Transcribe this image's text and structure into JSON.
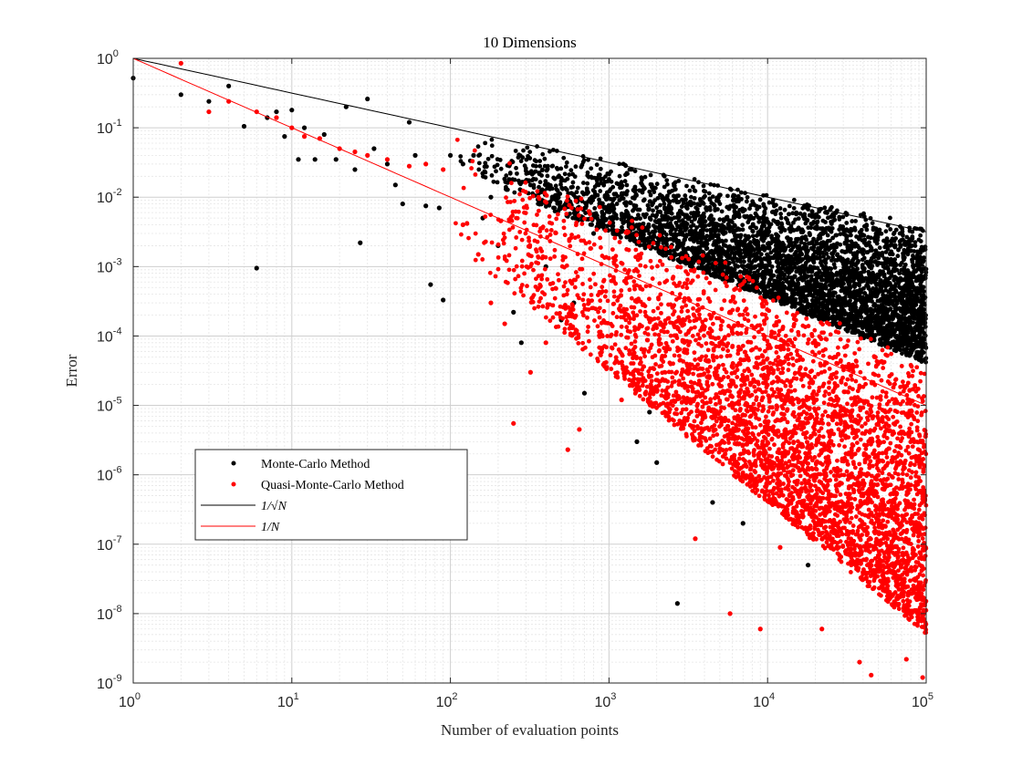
{
  "chart_data": {
    "type": "scatter",
    "title": "10 Dimensions",
    "xlabel": "Number of evaluation points",
    "ylabel": "Error",
    "xscale": "log",
    "yscale": "log",
    "xlim": [
      1,
      100000
    ],
    "ylim": [
      1e-09,
      1
    ],
    "grid": true,
    "minor_grid": true,
    "legend_position": "lower-left",
    "x_ticks": [
      {
        "base": "10",
        "exp": "0"
      },
      {
        "base": "10",
        "exp": "1"
      },
      {
        "base": "10",
        "exp": "2"
      },
      {
        "base": "10",
        "exp": "3"
      },
      {
        "base": "10",
        "exp": "4"
      },
      {
        "base": "10",
        "exp": "5"
      }
    ],
    "y_ticks": [
      {
        "base": "10",
        "exp": "0"
      },
      {
        "base": "10",
        "exp": "-1"
      },
      {
        "base": "10",
        "exp": "-2"
      },
      {
        "base": "10",
        "exp": "-3"
      },
      {
        "base": "10",
        "exp": "-4"
      },
      {
        "base": "10",
        "exp": "-5"
      },
      {
        "base": "10",
        "exp": "-6"
      },
      {
        "base": "10",
        "exp": "-7"
      },
      {
        "base": "10",
        "exp": "-8"
      },
      {
        "base": "10",
        "exp": "-9"
      }
    ],
    "series": [
      {
        "name": "Monte-Carlo Method",
        "kind": "scatter",
        "color": "#000000",
        "points": [
          [
            1,
            0.52
          ],
          [
            2,
            0.3
          ],
          [
            3,
            0.24
          ],
          [
            4,
            0.4
          ],
          [
            5,
            0.105
          ],
          [
            6,
            0.00095
          ],
          [
            7,
            0.14
          ],
          [
            8,
            0.17
          ],
          [
            9,
            0.075
          ],
          [
            10,
            0.18
          ],
          [
            11,
            0.035
          ],
          [
            12,
            0.1
          ],
          [
            14,
            0.035
          ],
          [
            16,
            0.08
          ],
          [
            19,
            0.035
          ],
          [
            22,
            0.2
          ],
          [
            25,
            0.025
          ],
          [
            27,
            0.0022
          ],
          [
            30,
            0.26
          ],
          [
            33,
            0.05
          ],
          [
            40,
            0.03
          ],
          [
            45,
            0.015
          ],
          [
            50,
            0.008
          ],
          [
            55,
            0.12
          ],
          [
            60,
            0.04
          ],
          [
            70,
            0.0075
          ],
          [
            75,
            0.00055
          ],
          [
            85,
            0.007
          ],
          [
            90,
            0.00033
          ],
          [
            100,
            0.04
          ],
          [
            120,
            0.03
          ],
          [
            140,
            0.04
          ],
          [
            160,
            0.005
          ],
          [
            180,
            0.01
          ],
          [
            200,
            0.002
          ],
          [
            250,
            0.00022
          ],
          [
            280,
            8e-05
          ],
          [
            320,
            0.015
          ],
          [
            400,
            0.001
          ],
          [
            500,
            0.00017
          ],
          [
            600,
            0.0003
          ],
          [
            700,
            1.5e-05
          ],
          [
            800,
            0.003
          ],
          [
            1500,
            3e-06
          ],
          [
            1800,
            8e-06
          ],
          [
            2000,
            1.5e-06
          ],
          [
            2700,
            1.4e-08
          ],
          [
            4500,
            4e-07
          ],
          [
            7000,
            2e-07
          ],
          [
            18000,
            5e-08
          ]
        ],
        "cloud": {
          "x_range": [
            100,
            100000
          ],
          "upper_error_at_1e3": 0.035,
          "upper_error_at_1e5": 0.004,
          "lower_error_at_1e3": 0.003,
          "lower_error_at_1e5": 4e-05
        }
      },
      {
        "name": "Quasi-Monte-Carlo Method",
        "kind": "scatter",
        "color": "#ff0000",
        "points": [
          [
            2,
            0.85
          ],
          [
            3,
            0.17
          ],
          [
            4,
            0.24
          ],
          [
            6,
            0.17
          ],
          [
            8,
            0.14
          ],
          [
            10,
            0.1
          ],
          [
            12,
            0.075
          ],
          [
            15,
            0.07
          ],
          [
            20,
            0.05
          ],
          [
            25,
            0.045
          ],
          [
            30,
            0.04
          ],
          [
            40,
            0.035
          ],
          [
            55,
            0.028
          ],
          [
            70,
            0.03
          ],
          [
            90,
            0.025
          ],
          [
            120,
            0.004
          ],
          [
            150,
            0.0015
          ],
          [
            180,
            0.0003
          ],
          [
            220,
            0.00015
          ],
          [
            250,
            5.5e-06
          ],
          [
            320,
            3e-05
          ],
          [
            400,
            8e-05
          ],
          [
            550,
            2.3e-06
          ],
          [
            650,
            4.5e-06
          ],
          [
            1200,
            1.2e-05
          ],
          [
            3500,
            1.2e-07
          ],
          [
            5800,
            1e-08
          ],
          [
            9000,
            6e-09
          ],
          [
            12000,
            9e-08
          ],
          [
            22000,
            6e-09
          ],
          [
            38000,
            2e-09
          ],
          [
            45000,
            1.3e-09
          ],
          [
            75000,
            2.2e-09
          ],
          [
            95000,
            1.2e-09
          ]
        ],
        "cloud": {
          "x_range": [
            100,
            100000
          ],
          "upper_error_at_1e3": 0.008,
          "upper_error_at_1e5": 4e-05,
          "lower_error_at_1e3": 3e-05,
          "lower_error_at_1e5": 5e-09
        }
      },
      {
        "name": "1/√N",
        "kind": "line",
        "color": "#000000",
        "function": "inverse_sqrt"
      },
      {
        "name": "1/N",
        "kind": "line",
        "color": "#ff0000",
        "function": "inverse"
      }
    ]
  }
}
